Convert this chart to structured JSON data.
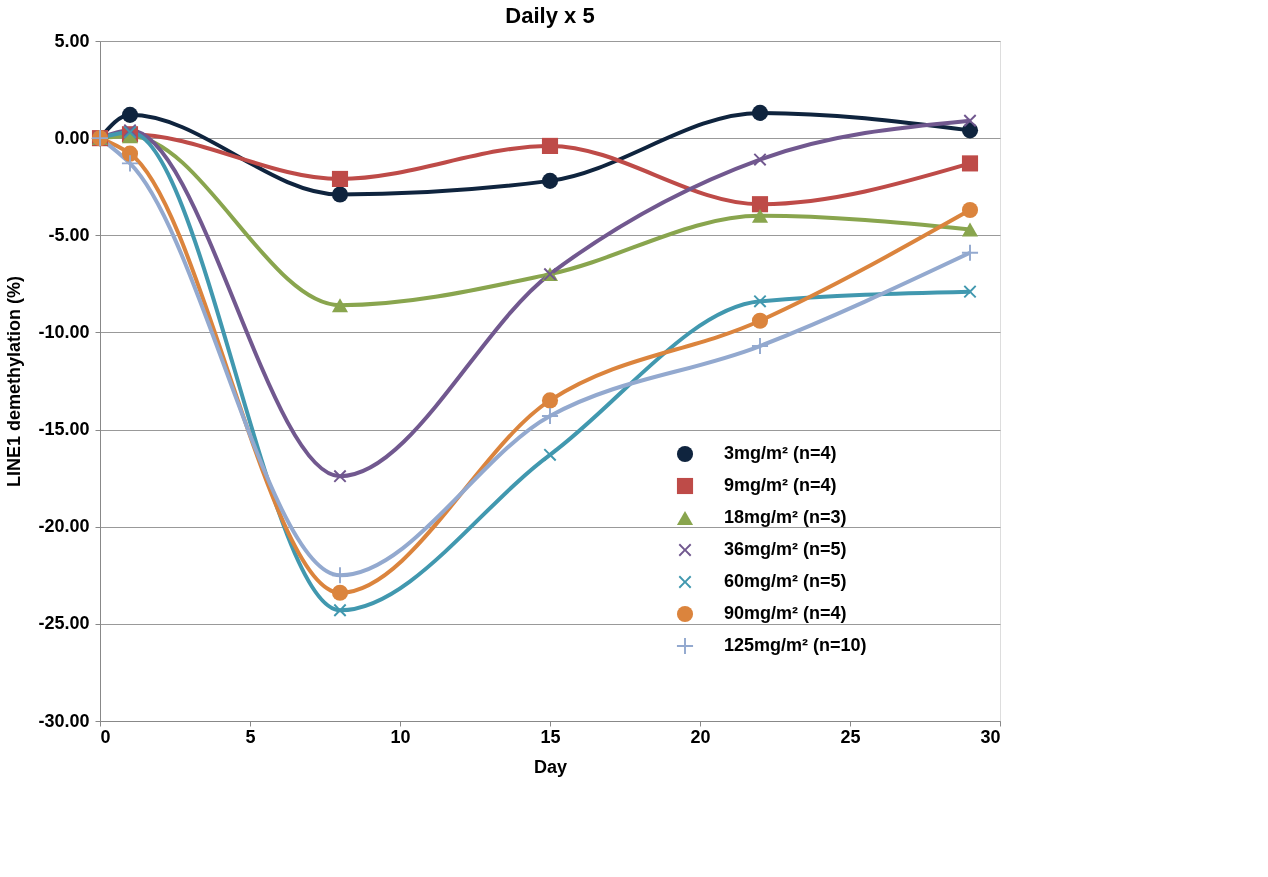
{
  "chart_data": {
    "type": "line",
    "title": "Daily x 5",
    "xlabel": "Day",
    "ylabel": "LINE1 demethylation (%)",
    "x": [
      0,
      1,
      8,
      15,
      22,
      29
    ],
    "xlim": [
      0,
      30
    ],
    "xticks": [
      0,
      5,
      10,
      15,
      20,
      25,
      30
    ],
    "ylim": [
      -30,
      5
    ],
    "yticks": [
      {
        "value": -30,
        "label": "-30.00"
      },
      {
        "value": -25,
        "label": "-25.00"
      },
      {
        "value": -20,
        "label": "-20.00"
      },
      {
        "value": -15,
        "label": "-15.00"
      },
      {
        "value": -10,
        "label": "-10.00"
      },
      {
        "value": -5,
        "label": "-5.00"
      },
      {
        "value": 0,
        "label": "0.00"
      },
      {
        "value": 5,
        "label": "5.00"
      }
    ],
    "grid": "y",
    "legend": "bottom right",
    "line_style": "solid",
    "series": [
      {
        "name": "3mg/m² (n=4)",
        "color": "#0f243e",
        "marker": "circle",
        "values": [
          0,
          1.2,
          -2.9,
          -2.2,
          1.3,
          0.4
        ]
      },
      {
        "name": "9mg/m² (n=4)",
        "color": "#be4b48",
        "marker": "square",
        "values": [
          0,
          0.2,
          -2.1,
          -0.4,
          -3.4,
          -1.3
        ]
      },
      {
        "name": "18mg/m² (n=3)",
        "color": "#89a54e",
        "marker": "triangle",
        "values": [
          0,
          0.1,
          -8.6,
          -7.0,
          -4.0,
          -4.7
        ]
      },
      {
        "name": "36mg/m² (n=5)",
        "color": "#71588f",
        "marker": "cross",
        "values": [
          0,
          0.4,
          -17.4,
          -7.0,
          -1.1,
          0.9
        ]
      },
      {
        "name": "60mg/m² (n=5)",
        "color": "#4198af",
        "marker": "cross",
        "values": [
          0,
          0.3,
          -24.3,
          -16.3,
          -8.4,
          -7.9
        ]
      },
      {
        "name": "90mg/m² (n=4)",
        "color": "#db843d",
        "marker": "circle",
        "values": [
          0,
          -0.8,
          -23.4,
          -13.5,
          -9.4,
          -3.7
        ]
      },
      {
        "name": "125mg/m² (n=10)",
        "color": "#93a9cf",
        "marker": "plus",
        "values": [
          0,
          -1.3,
          -22.5,
          -14.3,
          -10.7,
          -5.9
        ]
      }
    ]
  }
}
